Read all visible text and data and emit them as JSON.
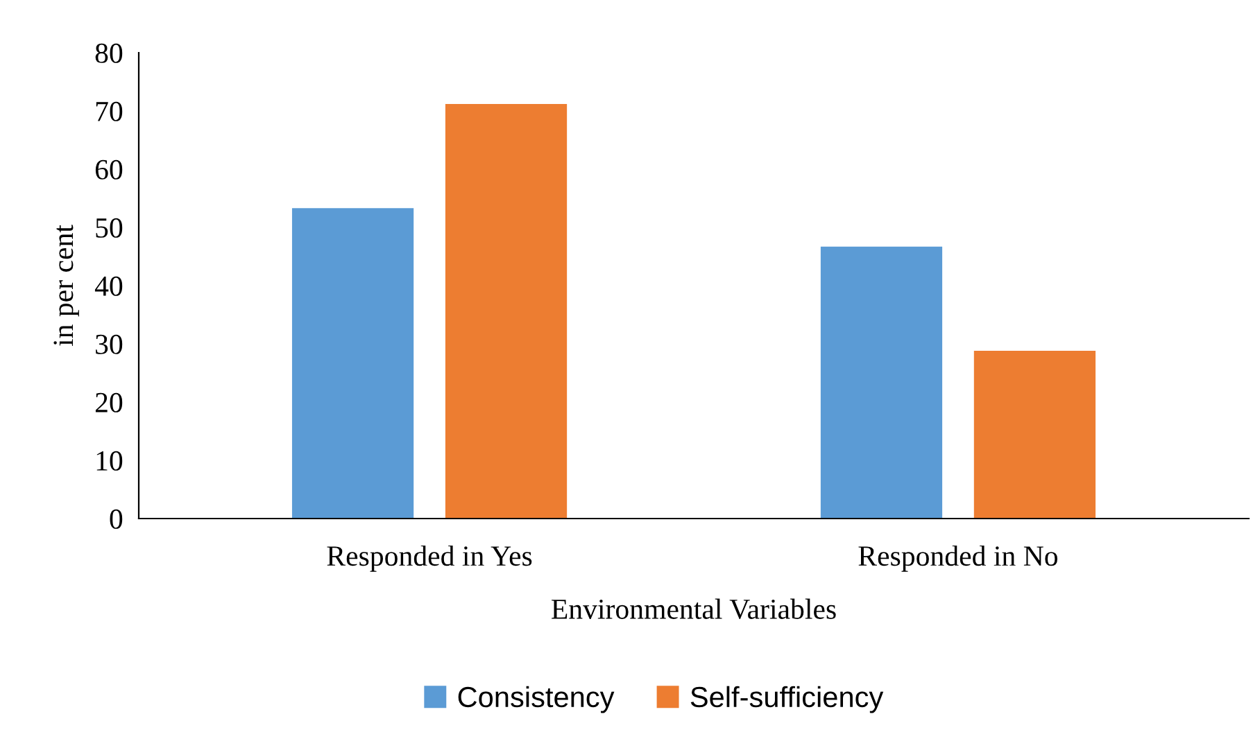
{
  "chart_data": {
    "type": "bar",
    "xlabel": "Environmental Variables",
    "ylabel": "in per cent",
    "categories": [
      "Responded in Yes",
      "Responded in No"
    ],
    "series": [
      {
        "name": "Consistency",
        "color": "#5b9bd5",
        "values": [
          53.3,
          46.7
        ]
      },
      {
        "name": "Self-sufficiency",
        "color": "#ed7d31",
        "values": [
          71.2,
          28.8
        ]
      }
    ],
    "ylim": [
      0,
      80
    ],
    "yticks": [
      0,
      10,
      20,
      30,
      40,
      50,
      60,
      70,
      80
    ],
    "grid": false,
    "legend": "bottom"
  }
}
